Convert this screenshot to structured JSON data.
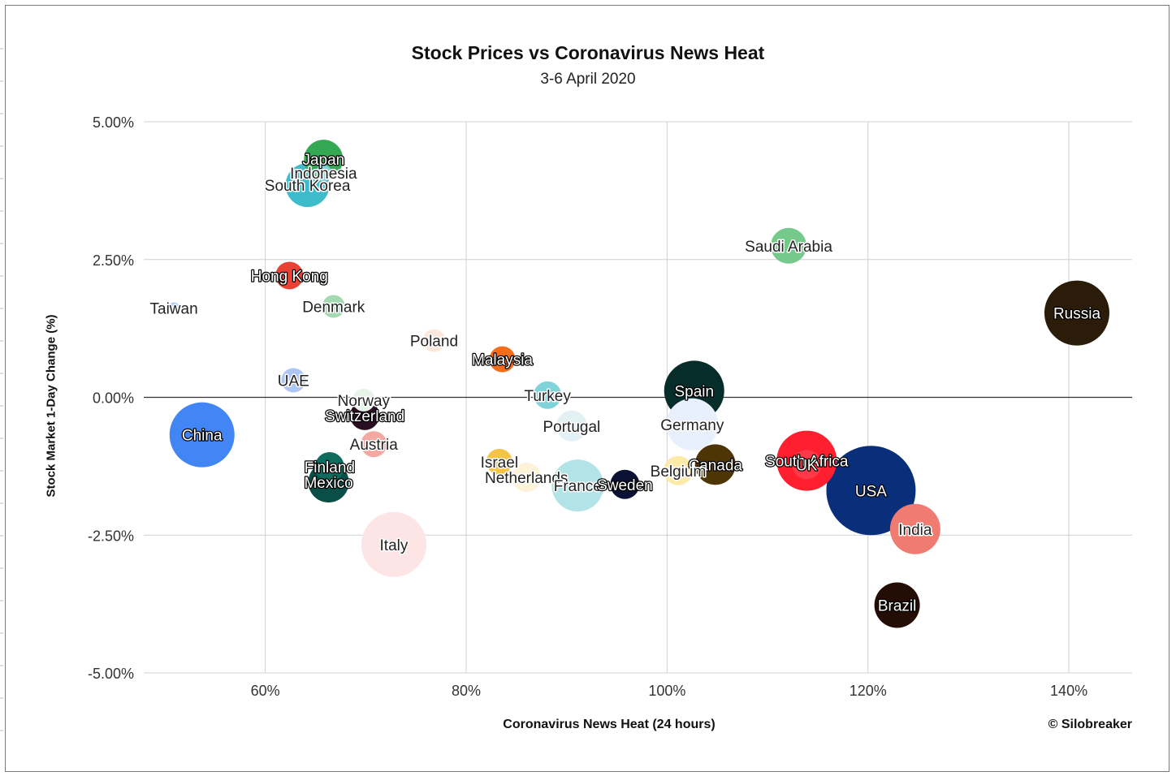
{
  "chart_data": {
    "type": "scatter",
    "title": "Stock Prices vs Coronavirus News Heat",
    "subtitle": "3-6 April 2020",
    "xlabel": "Coronavirus News Heat (24 hours)",
    "ylabel": "Stock Market 1-Day Change (%)",
    "credit": "© Silobreaker",
    "xlim": [
      0.479,
      1.463
    ],
    "ylim": [
      -5.0,
      5.0
    ],
    "x_ticks": [
      {
        "value": 0.6,
        "label": "60%"
      },
      {
        "value": 0.8,
        "label": "80%"
      },
      {
        "value": 1.0,
        "label": "100%"
      },
      {
        "value": 1.2,
        "label": "120%"
      },
      {
        "value": 1.4,
        "label": "140%"
      }
    ],
    "y_ticks": [
      {
        "value": 5.0,
        "label": "5.00%"
      },
      {
        "value": 2.5,
        "label": "2.50%"
      },
      {
        "value": 0.0,
        "label": "0.00%"
      },
      {
        "value": -2.5,
        "label": "-2.50%"
      },
      {
        "value": -5.0,
        "label": "-5.00%"
      }
    ],
    "grid": true,
    "points": [
      {
        "name": "Japan",
        "x": 0.658,
        "y": 4.32,
        "size": 24,
        "color": "#34a853"
      },
      {
        "name": "Indonesia",
        "x": 0.658,
        "y": 4.07,
        "size": 10,
        "color": "#81d4e0"
      },
      {
        "name": "South Korea",
        "x": 0.642,
        "y": 3.85,
        "size": 27,
        "color": "#3fbccb"
      },
      {
        "name": "Saudi Arabia",
        "x": 1.121,
        "y": 2.75,
        "size": 22,
        "color": "#74c98b"
      },
      {
        "name": "Hong Kong",
        "x": 0.624,
        "y": 2.21,
        "size": 17,
        "color": "#e94235"
      },
      {
        "name": "Denmark",
        "x": 0.668,
        "y": 1.65,
        "size": 14,
        "color": "#a3d9b1"
      },
      {
        "name": "Taiwan",
        "x": 0.509,
        "y": 1.62,
        "size": 7,
        "color": "#aecbfa"
      },
      {
        "name": "Russia",
        "x": 1.408,
        "y": 1.53,
        "size": 40,
        "color": "#2a1c08"
      },
      {
        "name": "Poland",
        "x": 0.768,
        "y": 1.03,
        "size": 14,
        "color": "#fde7db"
      },
      {
        "name": "Malaysia",
        "x": 0.836,
        "y": 0.69,
        "size": 16,
        "color": "#f46d1b"
      },
      {
        "name": "UAE",
        "x": 0.628,
        "y": 0.31,
        "size": 15,
        "color": "#aec6f6"
      },
      {
        "name": "Spain",
        "x": 1.027,
        "y": 0.12,
        "size": 37,
        "color": "#062d2a"
      },
      {
        "name": "Turkey",
        "x": 0.881,
        "y": 0.04,
        "size": 17,
        "color": "#7fd3d9"
      },
      {
        "name": "Norway",
        "x": 0.698,
        "y": -0.05,
        "size": 14,
        "color": "#e6f4ea"
      },
      {
        "name": "Germany",
        "x": 1.025,
        "y": -0.49,
        "size": 32,
        "color": "#e8f0fe"
      },
      {
        "name": "Portugal",
        "x": 0.905,
        "y": -0.52,
        "size": 19,
        "color": "#e2f1f4"
      },
      {
        "name": "Switzerland",
        "x": 0.699,
        "y": -0.33,
        "size": 18,
        "color": "#2a0f22"
      },
      {
        "name": "China",
        "x": 0.537,
        "y": -0.68,
        "size": 40,
        "color": "#4285f4"
      },
      {
        "name": "Austria",
        "x": 0.708,
        "y": -0.85,
        "size": 16,
        "color": "#f4a8a2"
      },
      {
        "name": "Israel",
        "x": 0.833,
        "y": -1.17,
        "size": 16,
        "color": "#f6c343"
      },
      {
        "name": "Canada",
        "x": 1.048,
        "y": -1.22,
        "size": 25,
        "color": "#4d3506"
      },
      {
        "name": "South Africa",
        "x": 1.139,
        "y": -1.15,
        "size": 37,
        "color": "#ff1f2f"
      },
      {
        "name": "UK",
        "x": 1.139,
        "y": -1.22,
        "size": 18,
        "color": "#ff3a48"
      },
      {
        "name": "Belgium",
        "x": 1.011,
        "y": -1.33,
        "size": 18,
        "color": "#fde9a8"
      },
      {
        "name": "Finland",
        "x": 0.664,
        "y": -1.26,
        "size": 18,
        "color": "#0e6b5e"
      },
      {
        "name": "Netherlands",
        "x": 0.86,
        "y": -1.45,
        "size": 18,
        "color": "#fdf3d9"
      },
      {
        "name": "Mexico",
        "x": 0.663,
        "y": -1.54,
        "size": 25,
        "color": "#0a4f47"
      },
      {
        "name": "France",
        "x": 0.911,
        "y": -1.6,
        "size": 32,
        "color": "#b2e3e7"
      },
      {
        "name": "Sweden",
        "x": 0.958,
        "y": -1.58,
        "size": 18,
        "color": "#0b1236"
      },
      {
        "name": "USA",
        "x": 1.203,
        "y": -1.69,
        "size": 55,
        "color": "#0a2f7a"
      },
      {
        "name": "India",
        "x": 1.247,
        "y": -2.39,
        "size": 31,
        "color": "#f07b70"
      },
      {
        "name": "Italy",
        "x": 0.728,
        "y": -2.67,
        "size": 40,
        "color": "#fde5e5"
      },
      {
        "name": "Brazil",
        "x": 1.229,
        "y": -3.77,
        "size": 28,
        "color": "#240d05"
      }
    ]
  }
}
